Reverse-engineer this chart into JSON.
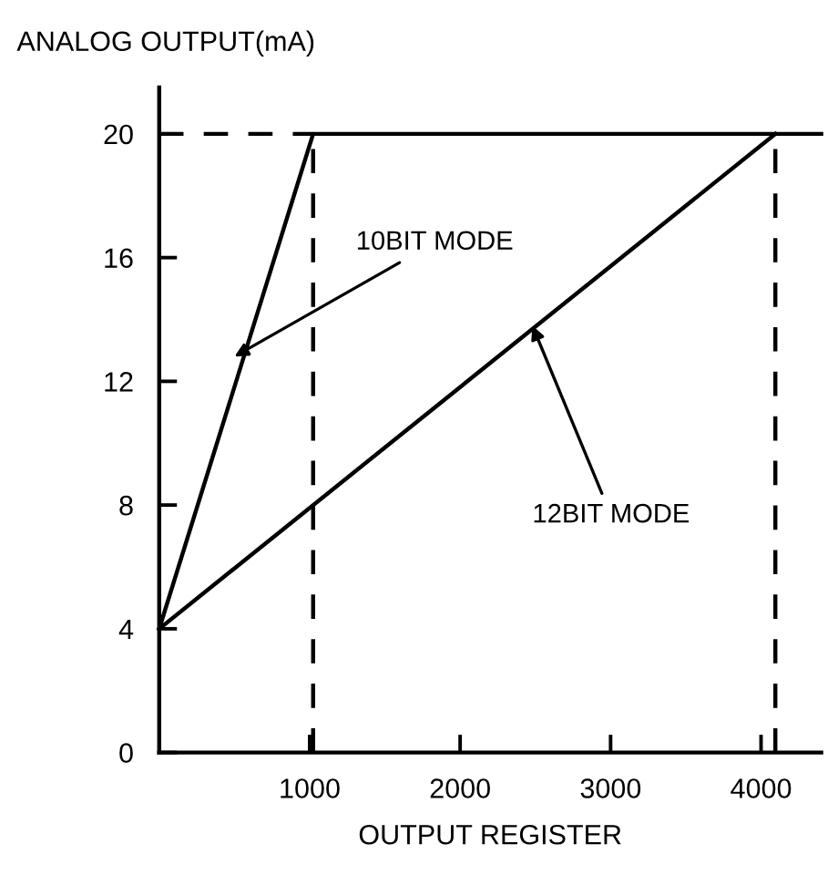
{
  "chart_data": {
    "type": "line",
    "ylabel": "ANALOG OUTPUT(mA)",
    "xlabel": "OUTPUT REGISTER",
    "xlim": [
      0,
      4400
    ],
    "ylim": [
      0,
      21.5
    ],
    "xticks": [
      1000,
      2000,
      3000,
      4000
    ],
    "yticks": [
      0,
      4,
      8,
      12,
      16,
      20
    ],
    "marker": "none",
    "series": [
      {
        "color": "#000000",
        "line_style": "solid",
        "x": [
          0,
          1023,
          4400
        ],
        "values": [
          4,
          20,
          20
        ]
      },
      {
        "color": "#000000",
        "line_style": "solid",
        "x": [
          0,
          4095
        ],
        "values": [
          4,
          20
        ]
      },
      {
        "color": "#000000",
        "line_style": "dashed",
        "x": [
          0,
          1023
        ],
        "values": [
          20,
          20
        ]
      },
      {
        "color": "#000000",
        "line_style": "dashed",
        "x": [
          1023,
          1023
        ],
        "values": [
          0,
          20
        ]
      },
      {
        "color": "#000000",
        "line_style": "dashed",
        "x": [
          4095,
          4095
        ],
        "values": [
          0,
          20
        ]
      }
    ],
    "annotations": [
      {
        "text": "10BIT MODE",
        "x": 500,
        "y": 12.8
      },
      {
        "text": "12BIT MODE",
        "x": 2480,
        "y": 13.8
      }
    ]
  }
}
